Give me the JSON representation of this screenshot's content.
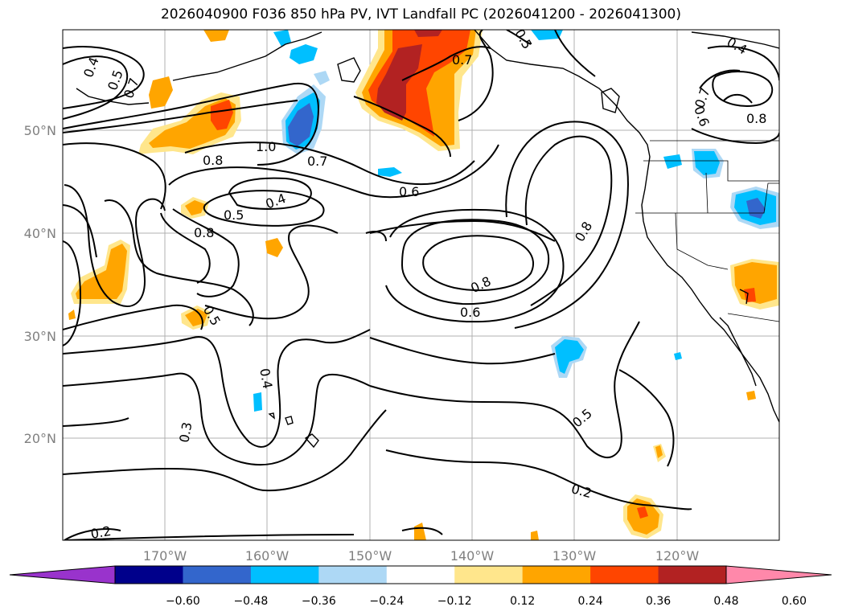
{
  "title": "2026040900 F036 850 hPa PV, IVT Landfall PC (2026041200 - 2026041300)",
  "lon_ticks": [
    "170°W",
    "160°W",
    "150°W",
    "140°W",
    "130°W",
    "120°W"
  ],
  "lat_ticks": [
    "50°N",
    "40°N",
    "30°N",
    "20°N"
  ],
  "colorbar": {
    "colors": [
      "#9933cc",
      "#00008b",
      "#3366cc",
      "#00bfff",
      "#add8f5",
      "#ffffff",
      "#ffe68c",
      "#ffa500",
      "#ff4500",
      "#b22222",
      "#ff88aa"
    ],
    "labels": [
      "−0.60",
      "−0.48",
      "−0.36",
      "−0.24",
      "−0.12",
      "0.12",
      "0.24",
      "0.36",
      "0.48",
      "0.60"
    ]
  },
  "contour_labels": [
    {
      "text": "0.4"
    },
    {
      "text": "0.5"
    },
    {
      "text": "0.7"
    },
    {
      "text": "1.0"
    },
    {
      "text": "0.8"
    },
    {
      "text": "0.7"
    },
    {
      "text": "0.6"
    },
    {
      "text": "0.4"
    },
    {
      "text": "0.5"
    },
    {
      "text": "0.8"
    },
    {
      "text": "0.7"
    },
    {
      "text": "0.8"
    },
    {
      "text": "0.8"
    },
    {
      "text": "0.6"
    },
    {
      "text": "0.5"
    },
    {
      "text": "0.4"
    },
    {
      "text": "0.3"
    },
    {
      "text": "0.5"
    },
    {
      "text": "0.2"
    },
    {
      "text": "0.2"
    },
    {
      "text": "0.4"
    },
    {
      "text": "0.7"
    },
    {
      "text": "0.6"
    },
    {
      "text": "0.8"
    },
    {
      "text": "0.5"
    }
  ]
}
